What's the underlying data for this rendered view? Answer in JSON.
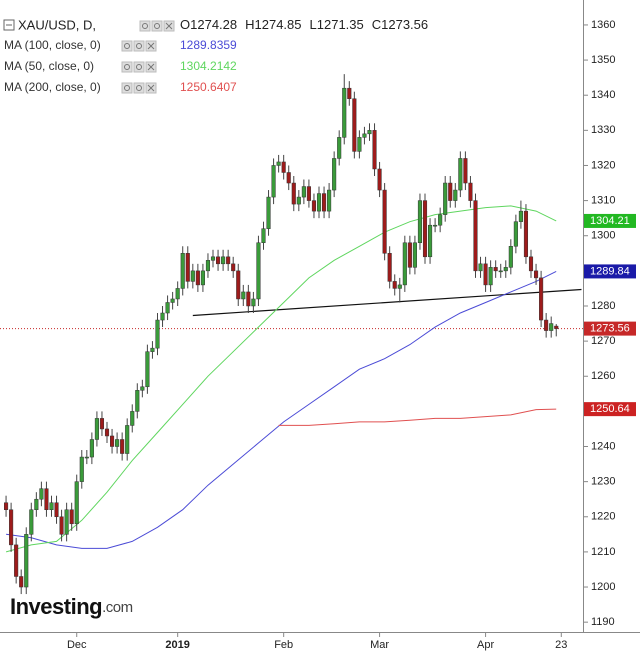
{
  "chart_data": {
    "type": "candlestick",
    "title": "XAU/USD, D,",
    "ohlc_letters": [
      "O",
      "H",
      "L",
      "C"
    ],
    "up_color": "#3a9b3a",
    "down_color": "#9e1b1b",
    "open": [
      1224,
      1222,
      1212,
      1203,
      1200,
      1215,
      1222,
      1225,
      1228,
      1222,
      1224,
      1220,
      1215,
      1222,
      1218,
      1230,
      1237,
      1237,
      1242,
      1248,
      1245,
      1243,
      1240,
      1242,
      1238,
      1246,
      1250,
      1256,
      1257,
      1267,
      1268,
      1276,
      1278,
      1281,
      1282,
      1285,
      1295,
      1287,
      1290,
      1286,
      1290,
      1293,
      1294,
      1292,
      1294,
      1292,
      1290,
      1282,
      1284,
      1280,
      1282,
      1298,
      1302,
      1311,
      1320,
      1321,
      1318,
      1315,
      1309,
      1311,
      1314,
      1310,
      1307,
      1312,
      1307,
      1313,
      1322,
      1328,
      1342,
      1339,
      1324,
      1328,
      1329,
      1330,
      1319,
      1313,
      1295,
      1287,
      1285,
      1286,
      1298,
      1291,
      1298,
      1310,
      1294,
      1303,
      1303,
      1306,
      1315,
      1310,
      1313,
      1322,
      1315,
      1310,
      1290,
      1292,
      1286,
      1291,
      1290,
      1290,
      1291,
      1297,
      1304,
      1307,
      1294,
      1290,
      1288,
      1276,
      1273,
      1274.28
    ],
    "high": [
      1226,
      1224,
      1214,
      1205,
      1217,
      1224,
      1227,
      1230,
      1230,
      1226,
      1226,
      1222,
      1224,
      1224,
      1232,
      1239,
      1239,
      1244,
      1250,
      1250,
      1247,
      1245,
      1244,
      1244,
      1248,
      1252,
      1258,
      1259,
      1269,
      1270,
      1278,
      1280,
      1283,
      1284,
      1287,
      1297,
      1297,
      1292,
      1292,
      1292,
      1295,
      1296,
      1296,
      1296,
      1296,
      1294,
      1292,
      1286,
      1286,
      1284,
      1300,
      1304,
      1313,
      1322,
      1323,
      1323,
      1320,
      1317,
      1313,
      1316,
      1316,
      1312,
      1314,
      1314,
      1315,
      1324,
      1330,
      1346,
      1344,
      1341,
      1330,
      1331,
      1332,
      1332,
      1321,
      1315,
      1297,
      1289,
      1288,
      1300,
      1300,
      1300,
      1312,
      1312,
      1305,
      1305,
      1308,
      1317,
      1317,
      1315,
      1324,
      1324,
      1317,
      1312,
      1294,
      1294,
      1293,
      1293,
      1292,
      1293,
      1299,
      1306,
      1310,
      1309,
      1296,
      1292,
      1290,
      1278,
      1277,
      1274.85
    ],
    "low": [
      1220,
      1210,
      1201,
      1198,
      1198,
      1213,
      1220,
      1223,
      1220,
      1220,
      1218,
      1213,
      1213,
      1216,
      1216,
      1228,
      1235,
      1235,
      1240,
      1243,
      1241,
      1238,
      1238,
      1236,
      1236,
      1244,
      1248,
      1254,
      1255,
      1265,
      1266,
      1274,
      1276,
      1279,
      1280,
      1283,
      1285,
      1285,
      1284,
      1284,
      1288,
      1291,
      1290,
      1290,
      1290,
      1288,
      1280,
      1280,
      1278,
      1278,
      1280,
      1296,
      1300,
      1309,
      1318,
      1316,
      1313,
      1307,
      1307,
      1309,
      1308,
      1305,
      1305,
      1305,
      1305,
      1311,
      1320,
      1326,
      1337,
      1322,
      1322,
      1326,
      1327,
      1317,
      1311,
      1293,
      1285,
      1283,
      1281,
      1284,
      1289,
      1289,
      1296,
      1292,
      1292,
      1301,
      1301,
      1304,
      1308,
      1308,
      1311,
      1313,
      1308,
      1288,
      1288,
      1284,
      1284,
      1288,
      1288,
      1288,
      1289,
      1295,
      1302,
      1292,
      1288,
      1286,
      1274,
      1271,
      1271,
      1271.35
    ],
    "close": [
      1222,
      1212,
      1203,
      1200,
      1215,
      1222,
      1225,
      1228,
      1222,
      1224,
      1220,
      1215,
      1222,
      1218,
      1230,
      1237,
      1237,
      1242,
      1248,
      1245,
      1243,
      1240,
      1242,
      1238,
      1246,
      1250,
      1256,
      1257,
      1267,
      1268,
      1276,
      1278,
      1281,
      1282,
      1285,
      1295,
      1287,
      1290,
      1286,
      1290,
      1293,
      1294,
      1292,
      1294,
      1292,
      1290,
      1282,
      1284,
      1280,
      1282,
      1298,
      1302,
      1311,
      1320,
      1321,
      1318,
      1315,
      1309,
      1311,
      1314,
      1310,
      1307,
      1312,
      1307,
      1313,
      1322,
      1328,
      1342,
      1339,
      1324,
      1328,
      1329,
      1330,
      1319,
      1313,
      1295,
      1287,
      1285,
      1286,
      1298,
      1291,
      1298,
      1310,
      1294,
      1303,
      1303,
      1306,
      1315,
      1310,
      1313,
      1322,
      1315,
      1310,
      1290,
      1292,
      1286,
      1291,
      1290,
      1290,
      1291,
      1297,
      1304,
      1307,
      1294,
      1290,
      1288,
      1276,
      1273,
      1275,
      1273.56
    ],
    "last_color": "#c62828",
    "xlim": [
      -1.2,
      114.3
    ],
    "xticks": [
      {
        "value": 14,
        "label": "Dec"
      },
      {
        "value": 34,
        "label": "2019"
      },
      {
        "value": 55,
        "label": "Feb"
      },
      {
        "value": 74,
        "label": "Mar"
      },
      {
        "value": 95,
        "label": "Apr"
      },
      {
        "value": 110,
        "label": "23"
      }
    ],
    "ylim": [
      1187.2,
      1367.1
    ],
    "yticks": [
      1190,
      1200,
      1210,
      1220,
      1230,
      1240,
      1250,
      1260,
      1270,
      1280,
      1290,
      1300,
      1310,
      1320,
      1330,
      1340,
      1350,
      1360
    ],
    "ma": [
      {
        "name": "MA (100, close, 0)",
        "legend_value": "1289.8359",
        "axis_label": "1289.84",
        "color": "#4b4bd6",
        "label_bg": "#1a1aa8",
        "x": [
          0,
          5,
          10,
          15,
          20,
          25,
          30,
          35,
          40,
          45,
          50,
          55,
          60,
          65,
          70,
          75,
          80,
          85,
          90,
          95,
          100,
          105,
          109
        ],
        "values": [
          1215,
          1214,
          1212,
          1211,
          1211,
          1213,
          1217,
          1222,
          1229,
          1235,
          1241,
          1247,
          1252,
          1257,
          1262,
          1265,
          1269,
          1274,
          1278,
          1281,
          1284,
          1287,
          1289.84
        ]
      },
      {
        "name": "MA (50, close, 0)",
        "legend_value": "1304.2142",
        "axis_label": "1304.21",
        "color": "#5fd65f",
        "label_bg": "#22b822",
        "x": [
          0,
          5,
          10,
          15,
          20,
          25,
          30,
          35,
          40,
          45,
          50,
          55,
          60,
          65,
          70,
          75,
          80,
          85,
          90,
          95,
          100,
          105,
          109
        ],
        "values": [
          1210,
          1212,
          1213,
          1219,
          1227,
          1236,
          1244,
          1252,
          1260,
          1267,
          1274,
          1281,
          1288,
          1293,
          1297,
          1301,
          1304,
          1306,
          1307,
          1308,
          1308.5,
          1307,
          1304.21
        ]
      },
      {
        "name": "MA (200, close, 0)",
        "legend_value": "1250.6407",
        "axis_label": "1250.64",
        "color": "#e05050",
        "label_bg": "#cc2222",
        "x": [
          54,
          60,
          65,
          70,
          75,
          80,
          85,
          90,
          95,
          100,
          105,
          109
        ],
        "values": [
          1246,
          1246,
          1246.5,
          1247,
          1247,
          1247.5,
          1248,
          1248,
          1248.5,
          1249,
          1250.5,
          1250.64
        ]
      }
    ],
    "trendline": {
      "color": "#111111",
      "x": [
        37,
        114
      ],
      "values": [
        1277.3,
        1284.7
      ]
    },
    "watermark": [
      "Investing",
      ".com"
    ]
  }
}
